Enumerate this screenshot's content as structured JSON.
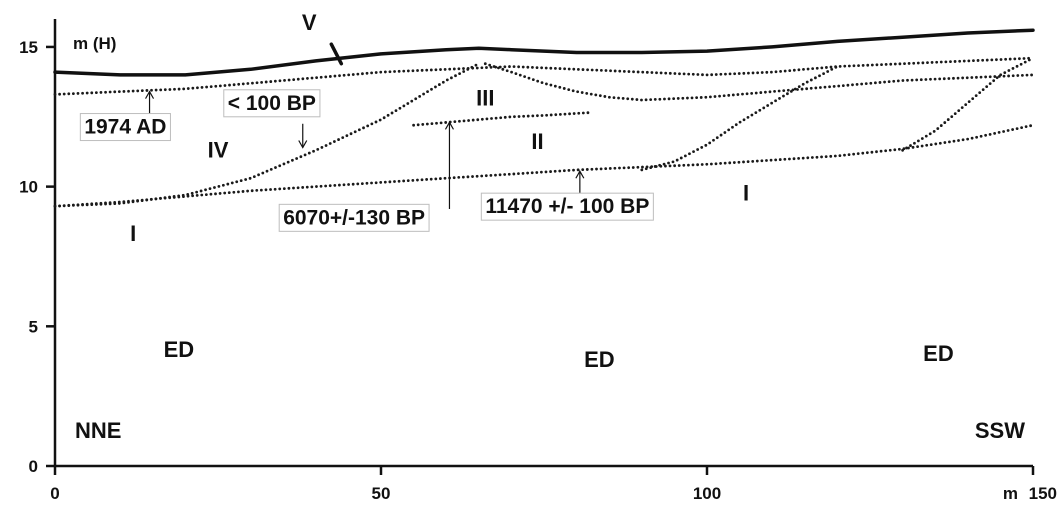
{
  "chart_data": {
    "type": "line",
    "x_unit_label": "m",
    "y_unit_label": "m (H)",
    "xlim": [
      0,
      150
    ],
    "ylim": [
      0,
      16
    ],
    "x_ticks": [
      "0",
      "50",
      "100",
      "150"
    ],
    "y_ticks": [
      "0",
      "5",
      "10",
      "15"
    ],
    "series": [
      {
        "name": "V",
        "style": "solid",
        "x": [
          0,
          10,
          20,
          30,
          40,
          50,
          60,
          65,
          70,
          80,
          90,
          100,
          110,
          120,
          130,
          140,
          150
        ],
        "y": [
          14.1,
          14.0,
          14.0,
          14.2,
          14.5,
          14.75,
          14.9,
          14.95,
          14.9,
          14.8,
          14.8,
          14.85,
          15.0,
          15.2,
          15.35,
          15.5,
          15.6
        ]
      },
      {
        "name": "1974 AD",
        "style": "dotted",
        "x": [
          0,
          10,
          20,
          30,
          40,
          50,
          60,
          70,
          80,
          90,
          100,
          110,
          120,
          130,
          140,
          150
        ],
        "y": [
          13.3,
          13.4,
          13.5,
          13.7,
          13.9,
          14.1,
          14.2,
          14.3,
          14.2,
          14.1,
          14.0,
          14.1,
          14.3,
          14.4,
          14.5,
          14.6
        ]
      },
      {
        "name": "III",
        "style": "dotted",
        "x": [
          66,
          70,
          75,
          80,
          85,
          90,
          100,
          110,
          120,
          130,
          140,
          150
        ],
        "y": [
          14.4,
          14.1,
          13.7,
          13.4,
          13.2,
          13.1,
          13.2,
          13.4,
          13.6,
          13.8,
          13.9,
          14.0
        ]
      },
      {
        "name": "IV",
        "style": "dotted",
        "x": [
          0,
          10,
          20,
          30,
          40,
          50,
          55,
          60,
          65
        ],
        "y": [
          9.3,
          9.4,
          9.7,
          10.3,
          11.3,
          12.4,
          13.1,
          13.8,
          14.4
        ]
      },
      {
        "name": "II",
        "style": "dotted",
        "x": [
          55,
          60,
          65,
          70,
          75,
          82
        ],
        "y": [
          12.2,
          12.3,
          12.4,
          12.5,
          12.55,
          12.65
        ]
      },
      {
        "name": "I",
        "style": "dotted",
        "x": [
          0,
          10,
          20,
          30,
          40,
          50,
          60,
          70,
          80,
          90,
          100,
          110,
          120,
          130,
          140,
          150
        ],
        "y": [
          9.3,
          9.45,
          9.65,
          9.85,
          10.0,
          10.15,
          10.3,
          10.45,
          10.6,
          10.7,
          10.8,
          10.95,
          11.1,
          11.35,
          11.7,
          12.2
        ]
      },
      {
        "name": "",
        "style": "dotted",
        "x": [
          90,
          95,
          100,
          105,
          110,
          115,
          120
        ],
        "y": [
          10.6,
          10.9,
          11.5,
          12.3,
          13.0,
          13.7,
          14.3
        ]
      },
      {
        "name": "",
        "style": "dotted",
        "x": [
          130,
          135,
          140,
          145,
          150
        ],
        "y": [
          11.3,
          12.0,
          13.0,
          14.0,
          14.6
        ]
      }
    ],
    "unit_labels": [
      {
        "text": "V",
        "x": 39,
        "y": 15.6
      },
      {
        "text": "IV",
        "x": 25,
        "y": 11.05
      },
      {
        "text": "III",
        "x": 66,
        "y": 12.9
      },
      {
        "text": "II",
        "x": 74,
        "y": 11.35
      },
      {
        "text": "I",
        "x": 12,
        "y": 8.05
      },
      {
        "text": "I",
        "x": 106,
        "y": 9.5
      }
    ],
    "date_annotations": [
      {
        "text": "1974 AD",
        "label_x": 4.5,
        "label_y": 11.9,
        "arrow_x": 14.5,
        "arrow_from_y": 12.3,
        "arrow_to_y": 13.4,
        "arrow_dir": "up"
      },
      {
        "text": "< 100 BP",
        "label_x": 26.5,
        "label_y": 12.75,
        "arrow_x": 38,
        "arrow_from_y": 12.25,
        "arrow_to_y": 11.4,
        "arrow_dir": "down"
      },
      {
        "text": "6070+/-130 BP",
        "label_x": 35,
        "label_y": 8.65,
        "arrow_x": 60.5,
        "arrow_from_y": 9.2,
        "arrow_to_y": 12.3,
        "arrow_dir": "up"
      },
      {
        "text": "11470 +/- 100 BP",
        "label_x": 66,
        "label_y": 9.05,
        "arrow_x": 80.5,
        "arrow_from_y": 9.6,
        "arrow_to_y": 10.55,
        "arrow_dir": "up"
      }
    ],
    "region_labels": [
      {
        "text": "ED",
        "x": 19,
        "y": 3.9
      },
      {
        "text": "ED",
        "x": 83.5,
        "y": 3.55
      },
      {
        "text": "ED",
        "x": 135.5,
        "y": 3.75
      }
    ],
    "orientation": {
      "left": "NNE",
      "right": "SSW",
      "y": 1.0
    }
  }
}
